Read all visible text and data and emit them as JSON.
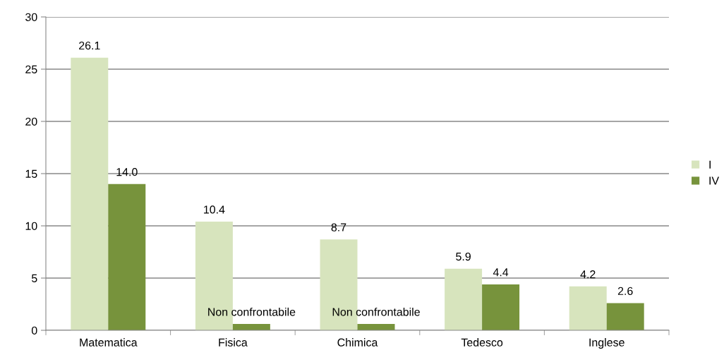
{
  "chart_data": {
    "type": "bar",
    "categories": [
      "Matematica",
      "Fisica",
      "Chimica",
      "Tedesco",
      "Inglese"
    ],
    "series": [
      {
        "name": "I",
        "color": "#d7e4bd",
        "values": [
          26.1,
          10.4,
          8.7,
          5.9,
          4.2
        ],
        "value_labels": [
          "26.1",
          "10.4",
          "8.7",
          "5.9",
          "4.2"
        ]
      },
      {
        "name": "IV",
        "color": "#77933c",
        "values": [
          14.0,
          0.6,
          0.6,
          4.4,
          2.6
        ],
        "value_labels": [
          "14.0",
          "Non confrontabile",
          "Non confrontabile",
          "4.4",
          "2.6"
        ]
      }
    ],
    "ylim": [
      0,
      30
    ],
    "yticks": [
      0,
      5,
      10,
      15,
      20,
      25,
      30
    ],
    "grid": "y",
    "legend": "right"
  }
}
